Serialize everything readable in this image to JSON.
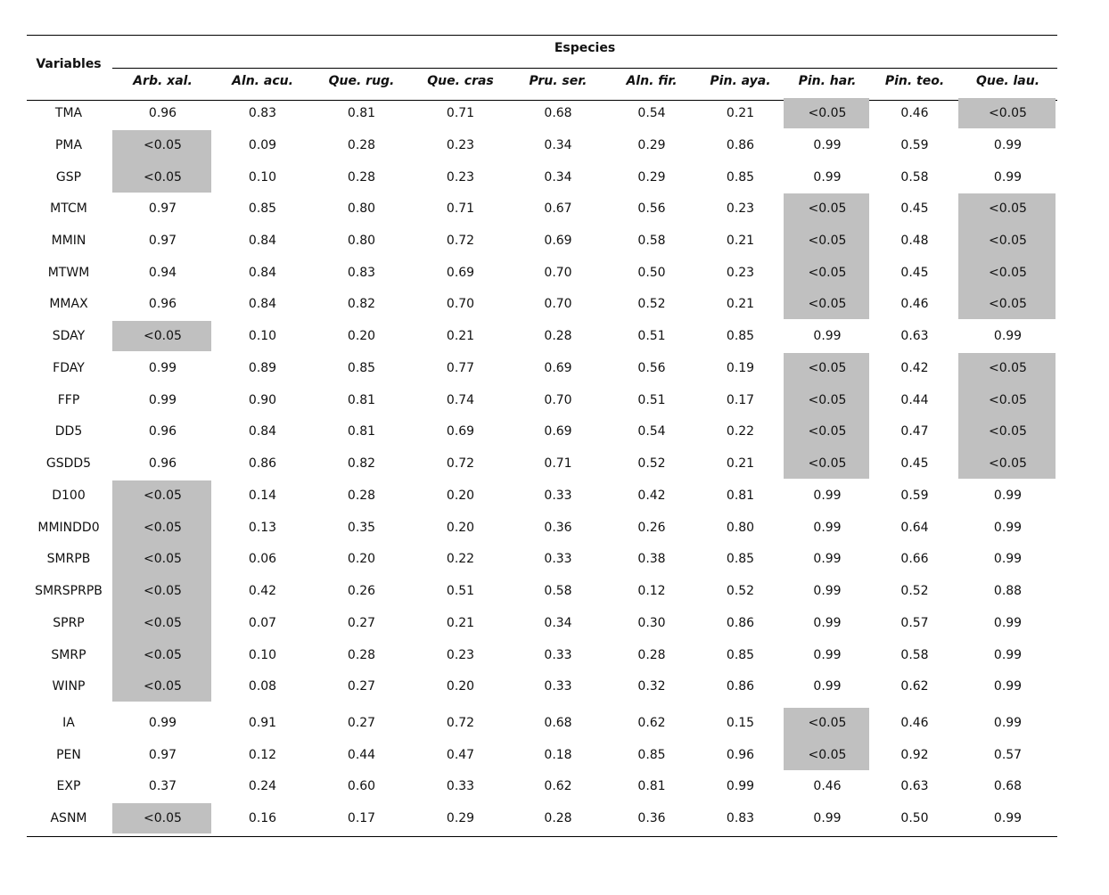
{
  "table": {
    "row_header": "Variables",
    "group_header": "Especies",
    "species": [
      "Arb. xal.",
      "Aln. acu.",
      "Que. rug.",
      "Que. cras",
      "Pru. ser.",
      "Aln. fir.",
      "Pin. aya.",
      "Pin. har.",
      "Pin. teo.",
      "Que. lau."
    ],
    "rows": [
      {
        "name": "TMA",
        "values": [
          "0.96",
          "0.83",
          "0.81",
          "0.71",
          "0.68",
          "0.54",
          "0.21",
          "<0.05",
          "0.46",
          "<0.05"
        ]
      },
      {
        "name": "PMA",
        "values": [
          "<0.05",
          "0.09",
          "0.28",
          "0.23",
          "0.34",
          "0.29",
          "0.86",
          "0.99",
          "0.59",
          "0.99"
        ]
      },
      {
        "name": "GSP",
        "values": [
          "<0.05",
          "0.10",
          "0.28",
          "0.23",
          "0.34",
          "0.29",
          "0.85",
          "0.99",
          "0.58",
          "0.99"
        ]
      },
      {
        "name": "MTCM",
        "values": [
          "0.97",
          "0.85",
          "0.80",
          "0.71",
          "0.67",
          "0.56",
          "0.23",
          "<0.05",
          "0.45",
          "<0.05"
        ]
      },
      {
        "name": "MMIN",
        "values": [
          "0.97",
          "0.84",
          "0.80",
          "0.72",
          "0.69",
          "0.58",
          "0.21",
          "<0.05",
          "0.48",
          "<0.05"
        ]
      },
      {
        "name": "MTWM",
        "values": [
          "0.94",
          "0.84",
          "0.83",
          "0.69",
          "0.70",
          "0.50",
          "0.23",
          "<0.05",
          "0.45",
          "<0.05"
        ]
      },
      {
        "name": "MMAX",
        "values": [
          "0.96",
          "0.84",
          "0.82",
          "0.70",
          "0.70",
          "0.52",
          "0.21",
          "<0.05",
          "0.46",
          "<0.05"
        ]
      },
      {
        "name": "SDAY",
        "values": [
          "<0.05",
          "0.10",
          "0.20",
          "0.21",
          "0.28",
          "0.51",
          "0.85",
          "0.99",
          "0.63",
          "0.99"
        ]
      },
      {
        "name": "FDAY",
        "values": [
          "0.99",
          "0.89",
          "0.85",
          "0.77",
          "0.69",
          "0.56",
          "0.19",
          "<0.05",
          "0.42",
          "<0.05"
        ]
      },
      {
        "name": "FFP",
        "values": [
          "0.99",
          "0.90",
          "0.81",
          "0.74",
          "0.70",
          "0.51",
          "0.17",
          "<0.05",
          "0.44",
          "<0.05"
        ]
      },
      {
        "name": "DD5",
        "values": [
          "0.96",
          "0.84",
          "0.81",
          "0.69",
          "0.69",
          "0.54",
          "0.22",
          "<0.05",
          "0.47",
          "<0.05"
        ]
      },
      {
        "name": "GSDD5",
        "values": [
          "0.96",
          "0.86",
          "0.82",
          "0.72",
          "0.71",
          "0.52",
          "0.21",
          "<0.05",
          "0.45",
          "<0.05"
        ]
      },
      {
        "name": "D100",
        "values": [
          "<0.05",
          "0.14",
          "0.28",
          "0.20",
          "0.33",
          "0.42",
          "0.81",
          "0.99",
          "0.59",
          "0.99"
        ]
      },
      {
        "name": "MMINDD0",
        "values": [
          "<0.05",
          "0.13",
          "0.35",
          "0.20",
          "0.36",
          "0.26",
          "0.80",
          "0.99",
          "0.64",
          "0.99"
        ]
      },
      {
        "name": "SMRPB",
        "values": [
          "<0.05",
          "0.06",
          "0.20",
          "0.22",
          "0.33",
          "0.38",
          "0.85",
          "0.99",
          "0.66",
          "0.99"
        ]
      },
      {
        "name": "SMRSPRPB",
        "values": [
          "<0.05",
          "0.42",
          "0.26",
          "0.51",
          "0.58",
          "0.12",
          "0.52",
          "0.99",
          "0.52",
          "0.88"
        ]
      },
      {
        "name": "SPRP",
        "values": [
          "<0.05",
          "0.07",
          "0.27",
          "0.21",
          "0.34",
          "0.30",
          "0.86",
          "0.99",
          "0.57",
          "0.99"
        ]
      },
      {
        "name": "SMRP",
        "values": [
          "<0.05",
          "0.10",
          "0.28",
          "0.23",
          "0.33",
          "0.28",
          "0.85",
          "0.99",
          "0.58",
          "0.99"
        ]
      },
      {
        "name": "WINP",
        "values": [
          "<0.05",
          "0.08",
          "0.27",
          "0.20",
          "0.33",
          "0.32",
          "0.86",
          "0.99",
          "0.62",
          "0.99"
        ]
      },
      {
        "name": "IA",
        "values": [
          "0.99",
          "0.91",
          "0.27",
          "0.72",
          "0.68",
          "0.62",
          "0.15",
          "<0.05",
          "0.46",
          "0.99"
        ]
      },
      {
        "name": "PEN",
        "values": [
          "0.97",
          "0.12",
          "0.44",
          "0.47",
          "0.18",
          "0.85",
          "0.96",
          "<0.05",
          "0.92",
          "0.57"
        ]
      },
      {
        "name": "EXP",
        "values": [
          "0.37",
          "0.24",
          "0.60",
          "0.33",
          "0.62",
          "0.81",
          "0.99",
          "0.46",
          "0.63",
          "0.68"
        ]
      },
      {
        "name": "ASNM",
        "values": [
          "<0.05",
          "0.16",
          "0.17",
          "0.29",
          "0.28",
          "0.36",
          "0.83",
          "0.99",
          "0.50",
          "0.99"
        ]
      }
    ],
    "highlight_color": "#c0c0c0"
  }
}
